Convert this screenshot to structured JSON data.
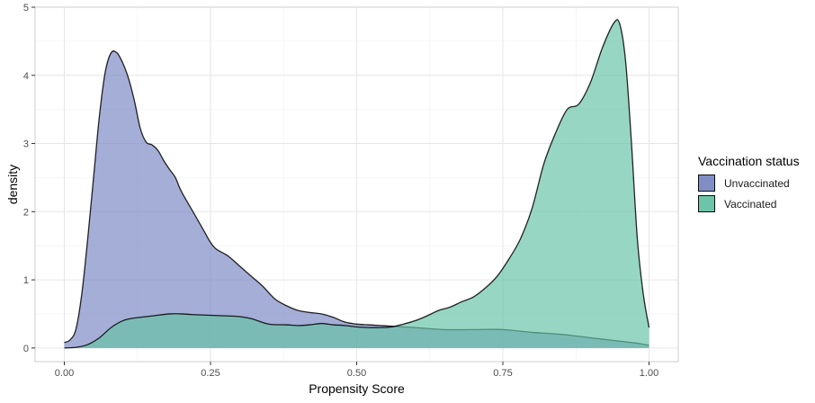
{
  "chart_data": {
    "type": "area",
    "xlabel": "Propensity Score",
    "ylabel": "density",
    "xlim": [
      -0.05,
      1.05
    ],
    "ylim": [
      -0.2,
      5
    ],
    "x_ticks": [
      0,
      0.25,
      0.5,
      0.75,
      1
    ],
    "x_tick_labels": [
      "0.00",
      "0.25",
      "0.50",
      "0.75",
      "1.00"
    ],
    "y_ticks": [
      0,
      1,
      2,
      3,
      4,
      5
    ],
    "y_tick_labels": [
      "0",
      "1",
      "2",
      "3",
      "4",
      "5"
    ],
    "grid": true,
    "legend": {
      "title": "Vaccination status",
      "position": "right"
    },
    "series": [
      {
        "name": "Unvaccinated",
        "color": "#7b88c4",
        "points": [
          [
            0.0,
            0.08
          ],
          [
            0.01,
            0.12
          ],
          [
            0.02,
            0.28
          ],
          [
            0.03,
            0.8
          ],
          [
            0.04,
            1.6
          ],
          [
            0.05,
            2.5
          ],
          [
            0.06,
            3.4
          ],
          [
            0.07,
            4.05
          ],
          [
            0.08,
            4.33
          ],
          [
            0.09,
            4.33
          ],
          [
            0.1,
            4.18
          ],
          [
            0.11,
            3.95
          ],
          [
            0.12,
            3.62
          ],
          [
            0.13,
            3.22
          ],
          [
            0.14,
            3.02
          ],
          [
            0.15,
            2.98
          ],
          [
            0.16,
            2.9
          ],
          [
            0.17,
            2.75
          ],
          [
            0.18,
            2.62
          ],
          [
            0.19,
            2.5
          ],
          [
            0.2,
            2.3
          ],
          [
            0.22,
            2.0
          ],
          [
            0.24,
            1.7
          ],
          [
            0.25,
            1.55
          ],
          [
            0.26,
            1.45
          ],
          [
            0.28,
            1.35
          ],
          [
            0.3,
            1.2
          ],
          [
            0.32,
            1.05
          ],
          [
            0.34,
            0.9
          ],
          [
            0.36,
            0.72
          ],
          [
            0.38,
            0.62
          ],
          [
            0.4,
            0.55
          ],
          [
            0.42,
            0.52
          ],
          [
            0.44,
            0.5
          ],
          [
            0.46,
            0.45
          ],
          [
            0.48,
            0.38
          ],
          [
            0.5,
            0.35
          ],
          [
            0.52,
            0.34
          ],
          [
            0.54,
            0.33
          ],
          [
            0.56,
            0.32
          ],
          [
            0.6,
            0.3
          ],
          [
            0.65,
            0.27
          ],
          [
            0.7,
            0.27
          ],
          [
            0.75,
            0.27
          ],
          [
            0.8,
            0.23
          ],
          [
            0.85,
            0.2
          ],
          [
            0.9,
            0.15
          ],
          [
            0.95,
            0.1
          ],
          [
            0.98,
            0.07
          ],
          [
            1.0,
            0.04
          ]
        ]
      },
      {
        "name": "Vaccinated",
        "color": "#66c2a5",
        "points": [
          [
            0.0,
            0.0
          ],
          [
            0.02,
            0.01
          ],
          [
            0.04,
            0.05
          ],
          [
            0.06,
            0.15
          ],
          [
            0.08,
            0.3
          ],
          [
            0.1,
            0.4
          ],
          [
            0.12,
            0.44
          ],
          [
            0.15,
            0.47
          ],
          [
            0.18,
            0.5
          ],
          [
            0.2,
            0.5
          ],
          [
            0.22,
            0.49
          ],
          [
            0.25,
            0.48
          ],
          [
            0.28,
            0.47
          ],
          [
            0.3,
            0.46
          ],
          [
            0.32,
            0.43
          ],
          [
            0.35,
            0.35
          ],
          [
            0.38,
            0.34
          ],
          [
            0.4,
            0.33
          ],
          [
            0.42,
            0.34
          ],
          [
            0.44,
            0.36
          ],
          [
            0.46,
            0.34
          ],
          [
            0.48,
            0.33
          ],
          [
            0.5,
            0.31
          ],
          [
            0.52,
            0.3
          ],
          [
            0.54,
            0.3
          ],
          [
            0.56,
            0.31
          ],
          [
            0.58,
            0.35
          ],
          [
            0.6,
            0.4
          ],
          [
            0.62,
            0.47
          ],
          [
            0.64,
            0.55
          ],
          [
            0.66,
            0.6
          ],
          [
            0.68,
            0.68
          ],
          [
            0.7,
            0.75
          ],
          [
            0.72,
            0.88
          ],
          [
            0.74,
            1.05
          ],
          [
            0.76,
            1.3
          ],
          [
            0.78,
            1.6
          ],
          [
            0.8,
            2.05
          ],
          [
            0.82,
            2.7
          ],
          [
            0.84,
            3.15
          ],
          [
            0.86,
            3.5
          ],
          [
            0.88,
            3.58
          ],
          [
            0.9,
            3.9
          ],
          [
            0.92,
            4.4
          ],
          [
            0.94,
            4.77
          ],
          [
            0.95,
            4.75
          ],
          [
            0.96,
            4.2
          ],
          [
            0.97,
            3.0
          ],
          [
            0.98,
            1.6
          ],
          [
            0.99,
            0.8
          ],
          [
            1.0,
            0.3
          ]
        ]
      }
    ]
  }
}
